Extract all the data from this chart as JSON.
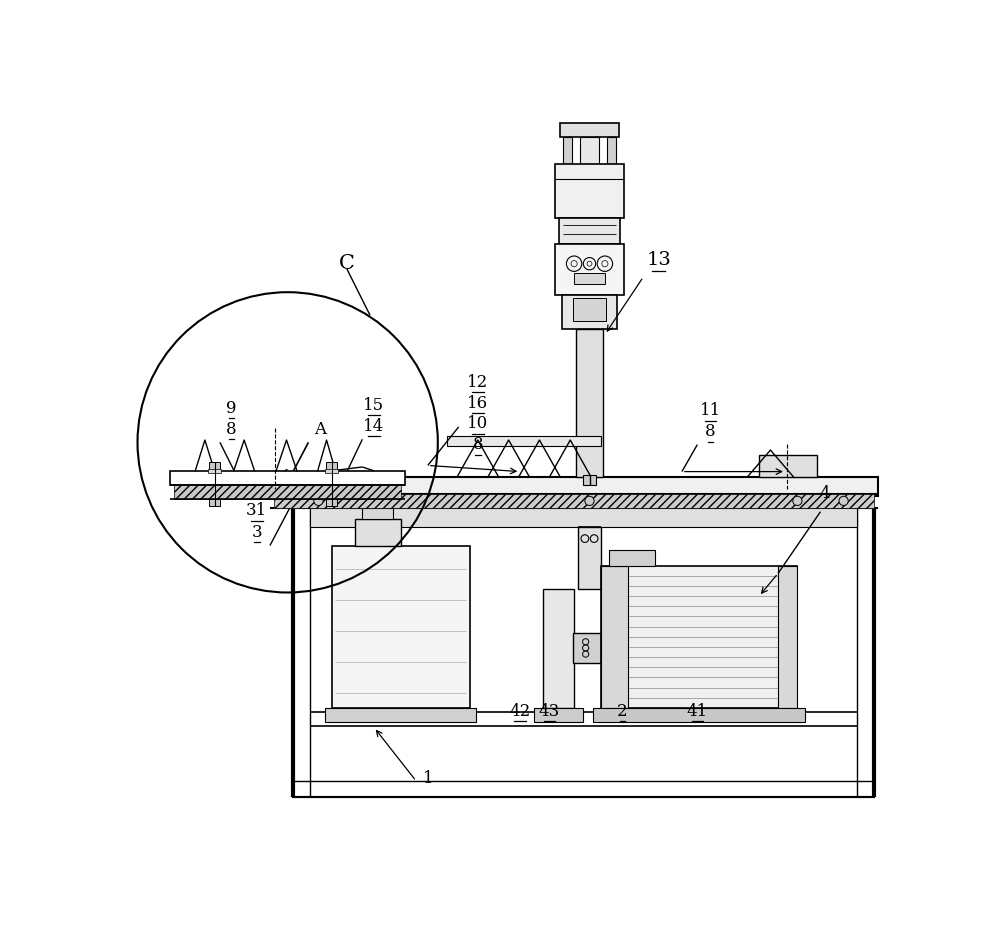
{
  "bg_color": "#ffffff",
  "lc": "#000000",
  "lw": 1.2
}
